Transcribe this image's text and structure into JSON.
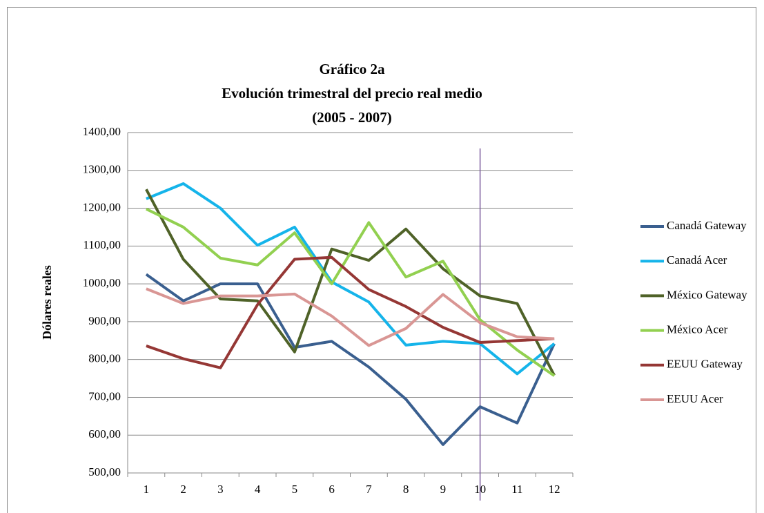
{
  "chart_data": {
    "type": "line",
    "title": [
      "Gráfico 2a",
      "Evolución trimestral del precio real medio",
      "(2005 - 2007)"
    ],
    "ylabel": "Dólares reales",
    "categories": [
      "1",
      "2",
      "3",
      "4",
      "5",
      "6",
      "7",
      "8",
      "9",
      "10",
      "11",
      "12"
    ],
    "ylim": [
      500,
      1400
    ],
    "yticks": [
      {
        "value": 500,
        "label": "500,00"
      },
      {
        "value": 600,
        "label": "600,00"
      },
      {
        "value": 700,
        "label": "700,00"
      },
      {
        "value": 800,
        "label": "800,00"
      },
      {
        "value": 900,
        "label": "900,00"
      },
      {
        "value": 1000,
        "label": "1000,00"
      },
      {
        "value": 1100,
        "label": "1100,00"
      },
      {
        "value": 1200,
        "label": "1200,00"
      },
      {
        "value": 1300,
        "label": "1300,00"
      },
      {
        "value": 1400,
        "label": "1400,00"
      }
    ],
    "grid": true,
    "legend": "right",
    "vertical_line": {
      "x": "10",
      "color": "#7b5c9e"
    },
    "series": [
      {
        "name": "Canadá Gateway",
        "color": "#3a5f8f",
        "values": [
          1025,
          955,
          1000,
          1000,
          832,
          848,
          780,
          695,
          575,
          675,
          632,
          842
        ]
      },
      {
        "name": "Canadá Acer",
        "color": "#15b4ea",
        "values": [
          1225,
          1265,
          1200,
          1102,
          1150,
          1005,
          952,
          838,
          848,
          842,
          762,
          842
        ]
      },
      {
        "name": "México Gateway",
        "color": "#4f6228",
        "values": [
          1250,
          1065,
          960,
          955,
          820,
          1092,
          1062,
          1145,
          1040,
          968,
          948,
          758
        ]
      },
      {
        "name": "México Acer",
        "color": "#92d050",
        "values": [
          1198,
          1150,
          1068,
          1050,
          1135,
          1000,
          1162,
          1018,
          1060,
          905,
          825,
          757
        ]
      },
      {
        "name": "EEUU Gateway",
        "color": "#953735",
        "values": [
          836,
          802,
          778,
          945,
          1065,
          1070,
          985,
          940,
          885,
          845,
          850,
          855
        ]
      },
      {
        "name": "EEUU Acer",
        "color": "#d99694",
        "values": [
          987,
          948,
          968,
          968,
          973,
          915,
          837,
          882,
          972,
          897,
          860,
          855
        ]
      }
    ]
  }
}
